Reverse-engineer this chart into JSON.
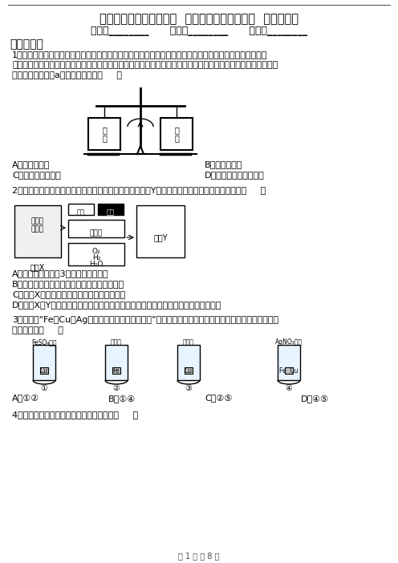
{
  "title": "浙教版九年级上册第二章  物质的转化与材料利用  单元测试卷",
  "subtitle": "姓名：________      班级：________      成绩：________",
  "section1": "一、选择题",
  "q1_line1": "1．将等容积、等质量（含瓶塞、导管、燃烧匙及瓶内少量的细沙）的两集气瓶氧气置于天平的左右两盘，调",
  "q1_line2": "至平衡。放入等质量的白磷和木炭（如图所示），塞紧瓶塞。然后分别设法将其点燃，使二者充分燃烧后冷却至室",
  "q1_line3": "温，打开止水夹（a），此时的天平（     ）",
  "q1_optA": "A．指针偏向右",
  "q1_optB": "B．指针偏向左",
  "q1_optC": "C．仍处于平衡状态",
  "q1_optD": "D．指针先向左后向右偏",
  "q2_line1": "2．如图是一种航天器能量储存系统原理示意图。其中装置Y为氢氧燃料电池，下列说法正确的是（     ）",
  "q2_optA": "A．该系统中只存在3种形式的能量转化",
  "q2_optB": "B．太阳能电池是将太阳能转化为化学能的装置",
  "q2_optC": "C．装置X能实现燃料电池的燃料和氧化剂再生",
  "q2_optD": "D．装置X、Y形成的子系统能实现物质的零排放，并能实现化学能与电能间的完全转化",
  "q3_line1": "3．要验证“Fe、Cu、Ag三种金属的活动性由强到弱”，小明设计了如图图示的实验。其中可以达到实验目",
  "q3_line2": "的的组合是（     ）",
  "q3_optA": "A．①②",
  "q3_optB": "B．①④",
  "q3_optC": "C．②⑤",
  "q3_optD": "D．④⑤",
  "q4_line1": "4．鉴别下列各组物质，所用试剂正确的是（     ）",
  "footer": "第 1 页 共 8 页",
  "bg_color": "#ffffff",
  "text_color": "#000000",
  "font_size_title": 10.5,
  "font_size_body": 8.0,
  "font_size_small": 7.0
}
